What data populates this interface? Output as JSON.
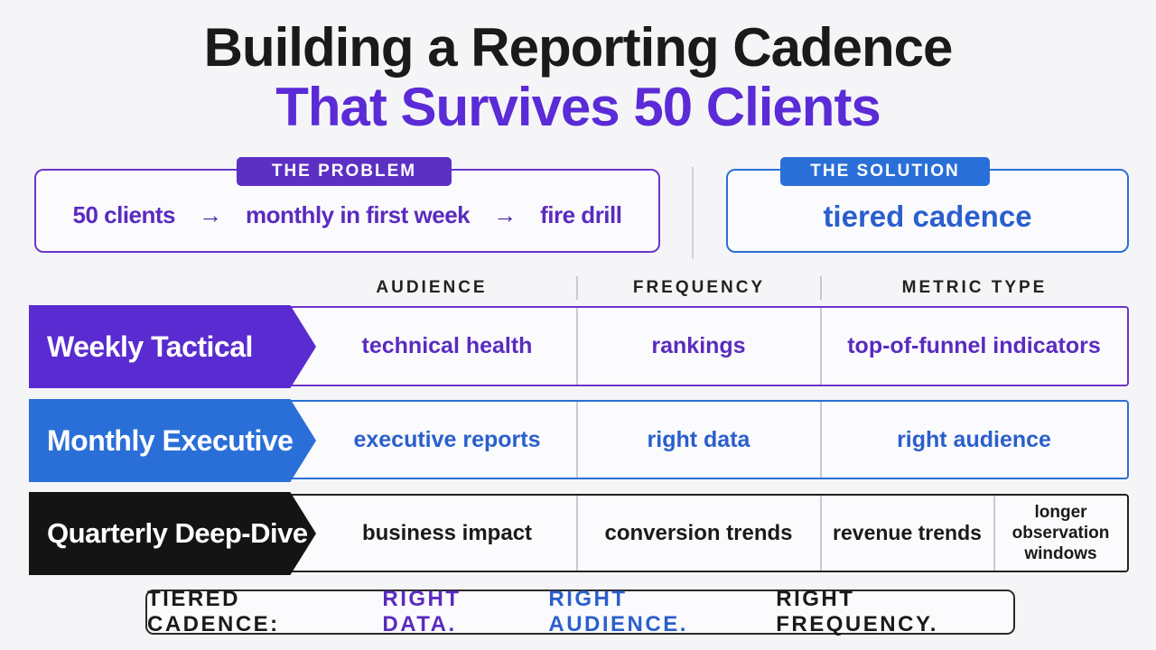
{
  "title": {
    "line1": "Building a Reporting Cadence",
    "line2": "That Survives 50 Clients"
  },
  "problem": {
    "tag": "THE PROBLEM",
    "flow": [
      "50 clients",
      "monthly in first week",
      "fire drill"
    ],
    "arrow": "→"
  },
  "solution": {
    "tag": "THE SOLUTION",
    "text": "tiered cadence"
  },
  "columns": [
    "AUDIENCE",
    "FREQUENCY",
    "METRIC TYPE"
  ],
  "rows": [
    {
      "label": "Weekly Tactical",
      "cells": [
        "technical health",
        "rankings",
        "top-of-funnel indicators"
      ],
      "color": "#5a2bd0"
    },
    {
      "label": "Monthly Executive",
      "cells": [
        "executive reports",
        "right data",
        "right audience"
      ],
      "color": "#2a6fd8"
    },
    {
      "label": "Quarterly Deep-Dive",
      "cells": [
        "business impact",
        "conversion trends",
        "revenue trends",
        "longer observation windows"
      ],
      "color": "#141414"
    }
  ],
  "footer": {
    "lead": "TIERED CADENCE:",
    "part1": "RIGHT DATA.",
    "part2": "RIGHT AUDIENCE.",
    "part3": "RIGHT FREQUENCY."
  }
}
